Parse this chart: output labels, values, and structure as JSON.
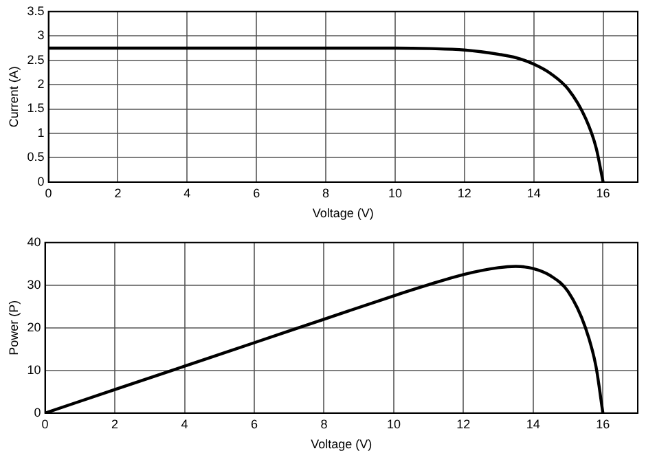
{
  "chart_data": [
    {
      "type": "line",
      "xlabel": "Voltage (V)",
      "ylabel": "Current (A)",
      "xlim": [
        0,
        17
      ],
      "xticks": [
        0,
        2,
        4,
        6,
        8,
        10,
        12,
        14,
        16
      ],
      "ylim": [
        0,
        3.5
      ],
      "yticks": [
        0,
        0.5,
        1,
        1.5,
        2,
        2.5,
        3,
        3.5
      ],
      "grid": true,
      "marker": "none",
      "line_style": "solid",
      "series": [
        {
          "color": "#000000",
          "x": [
            0,
            2,
            4,
            6,
            8,
            10,
            11,
            12,
            13,
            13.5,
            14,
            14.5,
            15,
            15.5,
            15.8,
            16
          ],
          "values": [
            2.75,
            2.75,
            2.75,
            2.75,
            2.75,
            2.75,
            2.74,
            2.71,
            2.62,
            2.55,
            2.42,
            2.22,
            1.9,
            1.3,
            0.7,
            0
          ]
        }
      ]
    },
    {
      "type": "line",
      "xlabel": "Voltage (V)",
      "ylabel": "Power (P)",
      "xlim": [
        0,
        17
      ],
      "xticks": [
        0,
        2,
        4,
        6,
        8,
        10,
        12,
        14,
        16
      ],
      "ylim": [
        0,
        40
      ],
      "yticks": [
        0,
        10,
        20,
        30,
        40
      ],
      "grid": true,
      "marker": "none",
      "line_style": "solid",
      "series": [
        {
          "color": "#000000",
          "x": [
            0,
            2,
            4,
            6,
            8,
            10,
            11,
            12,
            13,
            13.5,
            14,
            14.5,
            15,
            15.5,
            15.8,
            16
          ],
          "values": [
            0,
            5.5,
            11,
            16.5,
            22,
            27.5,
            30.1,
            32.5,
            34.1,
            34.4,
            33.9,
            32.2,
            28.5,
            20,
            11,
            0
          ]
        }
      ]
    }
  ]
}
